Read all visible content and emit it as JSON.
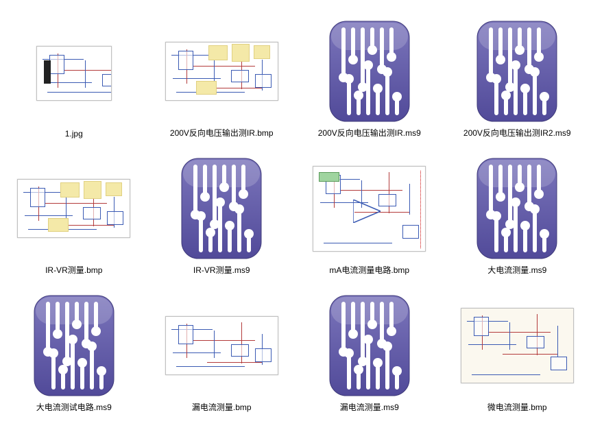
{
  "icon_colors": {
    "ms9_bg_top": "#7b75bb",
    "ms9_bg_bottom": "#514a99",
    "ms9_trace": "#ffffff",
    "ms9_pad": "#ffffff"
  },
  "files": [
    {
      "name": "1.jpg",
      "type": "jpg",
      "thumb_class": "sch-small"
    },
    {
      "name": "200V反向电压输出测IR.bmp",
      "type": "bmp",
      "thumb_class": "sch-wide",
      "notes": true
    },
    {
      "name": "200V反向电压输出测IR.ms9",
      "type": "ms9"
    },
    {
      "name": "200V反向电压输出测IR2.ms9",
      "type": "ms9"
    },
    {
      "name": "IR-VR测量.bmp",
      "type": "bmp",
      "thumb_class": "sch-wide",
      "notes": true
    },
    {
      "name": "IR-VR测量.ms9",
      "type": "ms9"
    },
    {
      "name": "mA电流测量电路.bmp",
      "type": "bmp",
      "thumb_class": "sch-tall",
      "opamp": true
    },
    {
      "name": "大电流测量.ms9",
      "type": "ms9"
    },
    {
      "name": "大电流测试电路.ms9",
      "type": "ms9"
    },
    {
      "name": "漏电流测量.bmp",
      "type": "bmp",
      "thumb_class": "sch-wide"
    },
    {
      "name": "漏电流测量.ms9",
      "type": "ms9"
    },
    {
      "name": "微电流测量.bmp",
      "type": "bmp",
      "thumb_class": "sch-med",
      "cream": true
    }
  ]
}
